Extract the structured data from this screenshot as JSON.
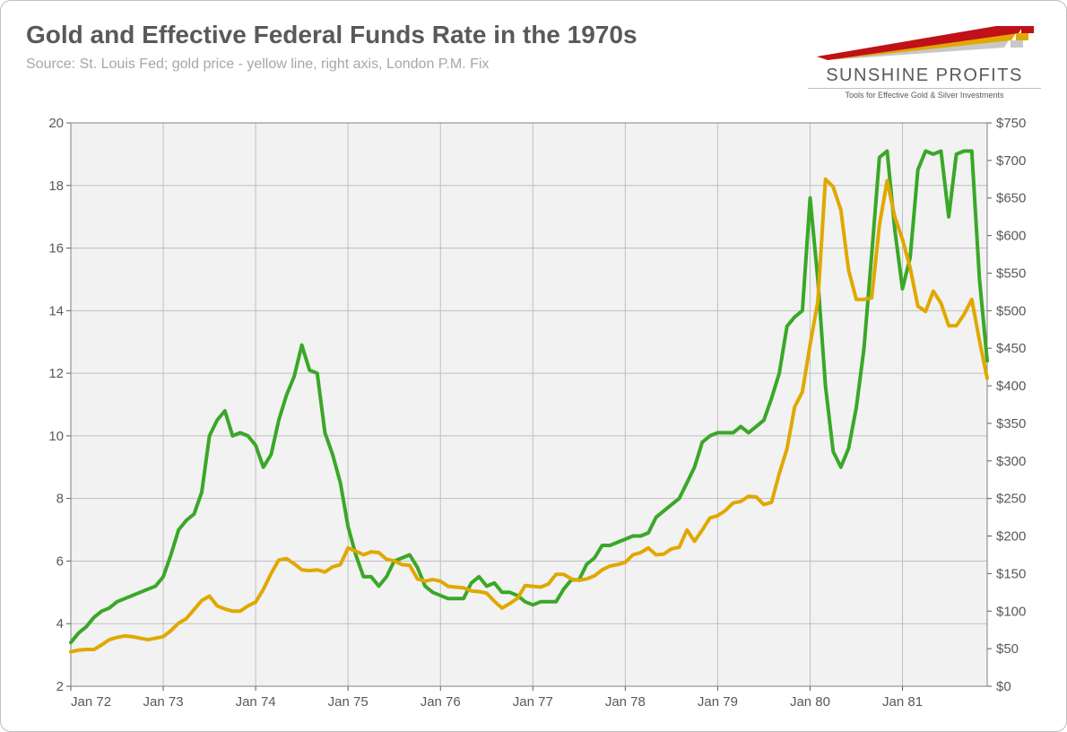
{
  "title": "Gold and Effective Federal Funds Rate in the 1970s",
  "subtitle": "Source: St. Louis Fed; gold price - yellow line, right axis, London P.M. Fix",
  "logo": {
    "name": "SUNSHINE PROFITS",
    "tagline": "Tools for Effective Gold & Silver Investments",
    "swoosh_colors": [
      "#c01018",
      "#e0a800",
      "#c8c8c8"
    ]
  },
  "chart": {
    "type": "line-dual-axis",
    "background_color": "#f2f2f2",
    "grid_color": "#bfbfbf",
    "border_color": "#808080",
    "tick_color": "#595959",
    "font_size_axis": 15,
    "line_width": 4,
    "x": {
      "labels": [
        "Jan 72",
        "Jan 73",
        "Jan 74",
        "Jan 75",
        "Jan 76",
        "Jan 77",
        "Jan 78",
        "Jan 79",
        "Jan 80",
        "Jan 81"
      ],
      "months_total": 120,
      "grid_every_label": true
    },
    "y_left": {
      "min": 2,
      "max": 20,
      "step": 2,
      "ticks": [
        2,
        4,
        6,
        8,
        10,
        12,
        14,
        16,
        18,
        20
      ]
    },
    "y_right": {
      "min": 0,
      "max": 750,
      "step": 50,
      "ticks": [
        0,
        50,
        100,
        150,
        200,
        250,
        300,
        350,
        400,
        450,
        500,
        550,
        600,
        650,
        700,
        750
      ],
      "prefix": "$"
    },
    "series": [
      {
        "name": "Fed Funds Rate",
        "axis": "left",
        "color": "#39a827",
        "data": [
          3.4,
          3.7,
          3.9,
          4.2,
          4.4,
          4.5,
          4.7,
          4.8,
          4.9,
          5.0,
          5.1,
          5.2,
          5.5,
          6.2,
          7.0,
          7.3,
          7.5,
          8.2,
          10.0,
          10.5,
          10.8,
          10.0,
          10.1,
          10.0,
          9.7,
          9.0,
          9.4,
          10.5,
          11.3,
          11.9,
          12.9,
          12.1,
          12.0,
          10.1,
          9.4,
          8.5,
          7.1,
          6.2,
          5.5,
          5.5,
          5.2,
          5.5,
          6.0,
          6.1,
          6.2,
          5.8,
          5.2,
          5.0,
          4.9,
          4.8,
          4.8,
          4.8,
          5.3,
          5.5,
          5.2,
          5.3,
          5.0,
          5.0,
          4.9,
          4.7,
          4.6,
          4.7,
          4.7,
          4.7,
          5.1,
          5.4,
          5.4,
          5.9,
          6.1,
          6.5,
          6.5,
          6.6,
          6.7,
          6.8,
          6.8,
          6.9,
          7.4,
          7.6,
          7.8,
          8.0,
          8.5,
          9.0,
          9.8,
          10.0,
          10.1,
          10.1,
          10.1,
          10.3,
          10.1,
          10.3,
          10.5,
          11.2,
          12.0,
          13.5,
          13.8,
          14.0,
          17.6,
          15.0,
          11.6,
          9.5,
          9.0,
          9.6,
          10.9,
          12.8,
          15.8,
          18.9,
          19.1,
          16.6,
          14.7,
          15.7,
          18.5,
          19.1,
          19.0,
          19.1,
          17.0,
          19.0,
          19.1,
          19.1,
          15.0,
          12.4
        ]
      },
      {
        "name": "Gold Price",
        "axis": "right",
        "color": "#e0a800",
        "data": [
          46,
          48,
          49,
          49,
          55,
          62,
          65,
          67,
          66,
          64,
          62,
          64,
          66,
          74,
          84,
          90,
          102,
          114,
          120,
          107,
          103,
          100,
          100,
          107,
          112,
          129,
          150,
          168,
          170,
          163,
          155,
          154,
          155,
          152,
          159,
          162,
          184,
          180,
          175,
          179,
          178,
          169,
          167,
          162,
          161,
          143,
          140,
          142,
          140,
          133,
          132,
          131,
          127,
          126,
          124,
          113,
          104,
          110,
          117,
          134,
          133,
          132,
          136,
          149,
          149,
          143,
          141,
          143,
          147,
          155,
          160,
          162,
          165,
          175,
          178,
          184,
          175,
          176,
          183,
          185,
          208,
          193,
          208,
          224,
          227,
          234,
          244,
          246,
          253,
          252,
          242,
          245,
          283,
          316,
          372,
          392,
          455,
          512,
          675,
          665,
          634,
          554,
          515,
          515,
          517,
          614,
          673,
          625,
          595,
          557,
          506,
          499,
          526,
          510,
          480,
          480,
          495,
          515,
          460,
          410
        ]
      }
    ]
  }
}
